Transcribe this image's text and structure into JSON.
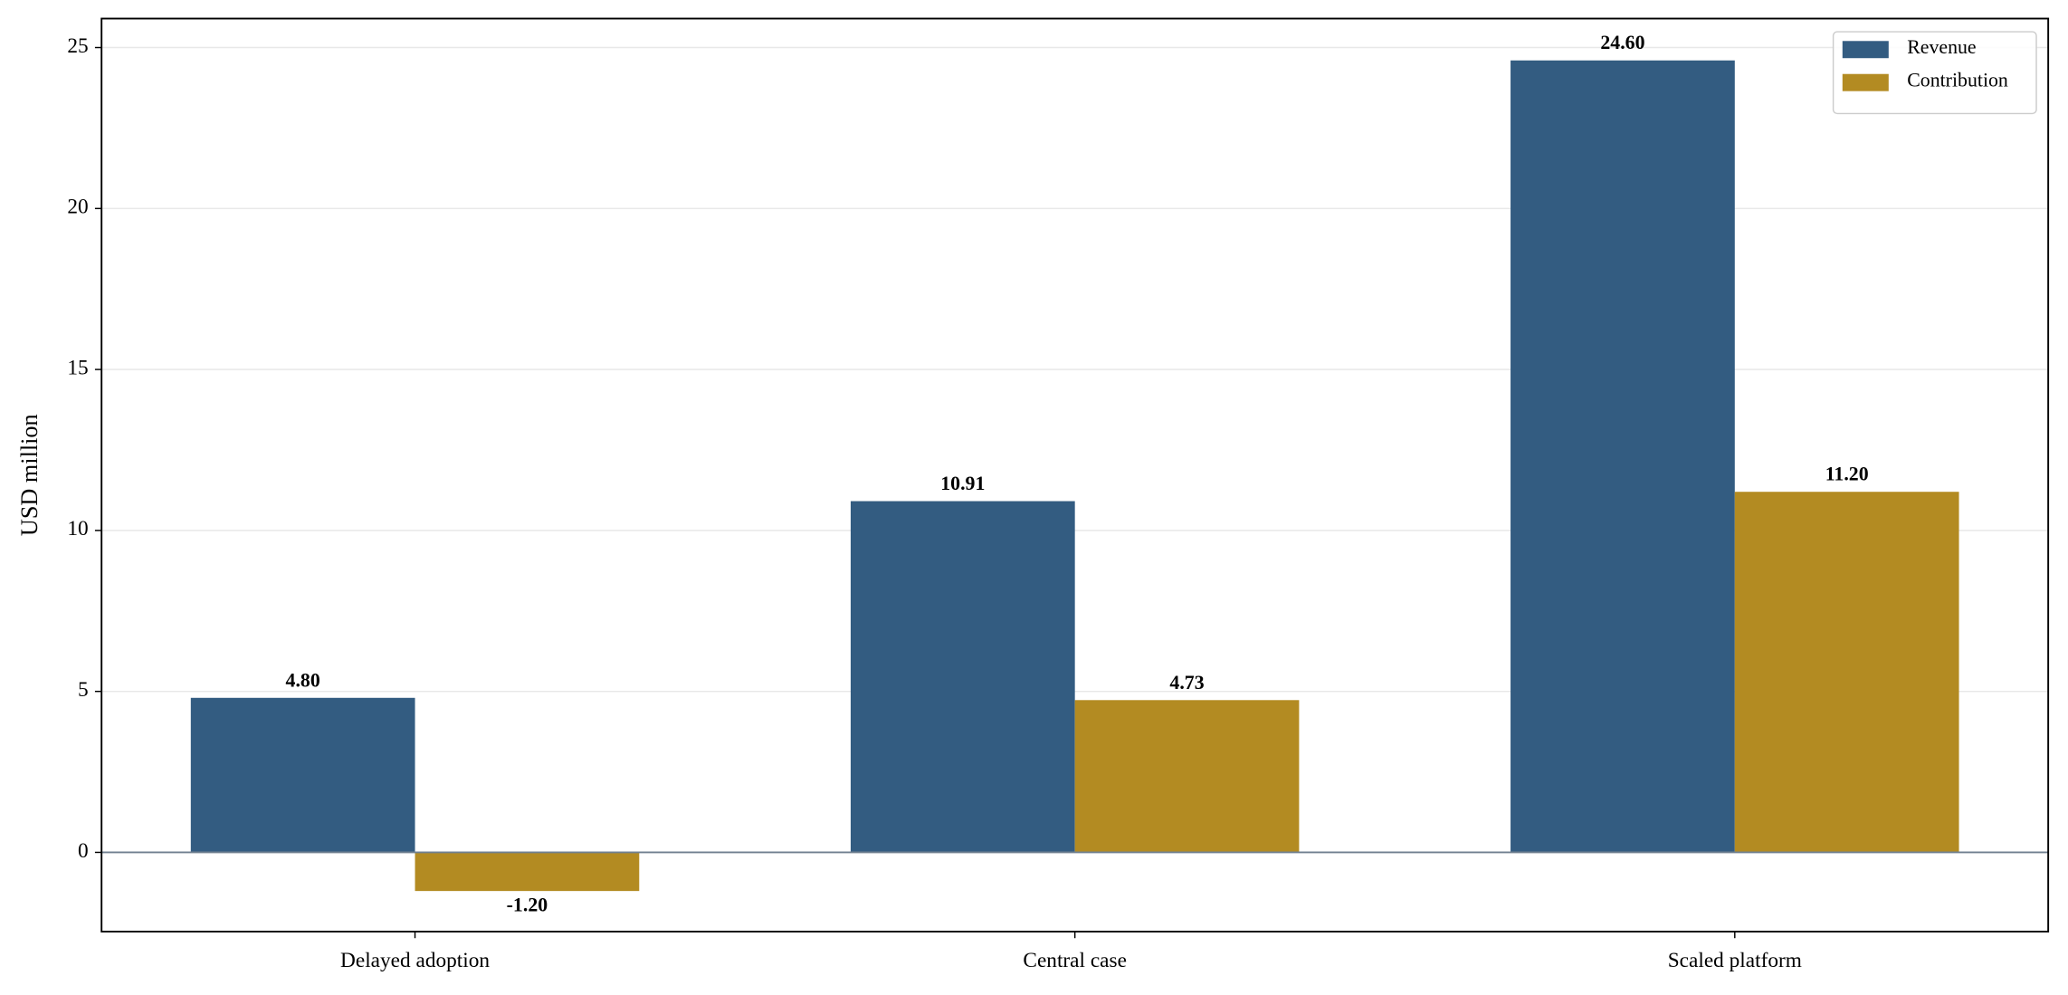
{
  "chart_data": {
    "type": "bar",
    "y_label": "USD million",
    "categories": [
      "Delayed adoption",
      "Central case",
      "Scaled platform"
    ],
    "series": [
      {
        "name": "Revenue",
        "color": "#335c81",
        "values": [
          4.8,
          10.91,
          24.6
        ],
        "value_labels": [
          "4.80",
          "10.91",
          "24.60"
        ]
      },
      {
        "name": "Contribution",
        "color": "#b38b22",
        "values": [
          -1.2,
          4.73,
          11.2
        ],
        "value_labels": [
          "-1.20",
          "4.73",
          "11.20"
        ]
      }
    ],
    "ylim": [
      -2.46,
      25.9
    ],
    "yticks": [
      0,
      5,
      10,
      15,
      20,
      25
    ],
    "grid": true,
    "legend": "upper right"
  }
}
